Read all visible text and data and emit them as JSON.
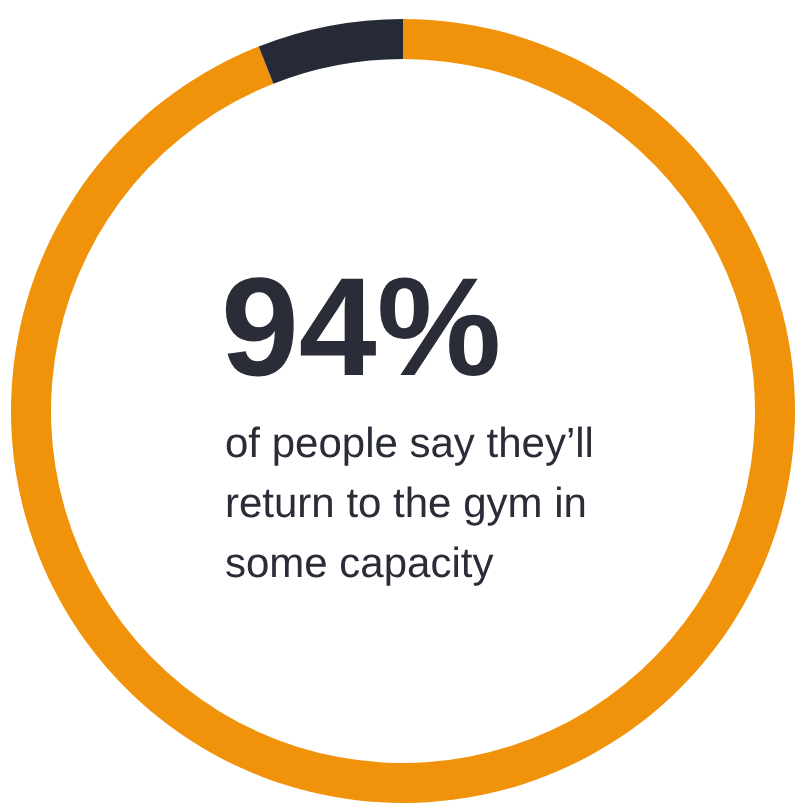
{
  "chart_data": {
    "type": "donut",
    "categories": [
      null,
      null
    ],
    "values": [
      94,
      6
    ],
    "colors": [
      "#f0930a",
      "#262a36"
    ],
    "value_labels": [
      "94%",
      null
    ],
    "annotations": [
      "of people say they’ll\nreturn to the gym in\nsome capacity"
    ]
  }
}
